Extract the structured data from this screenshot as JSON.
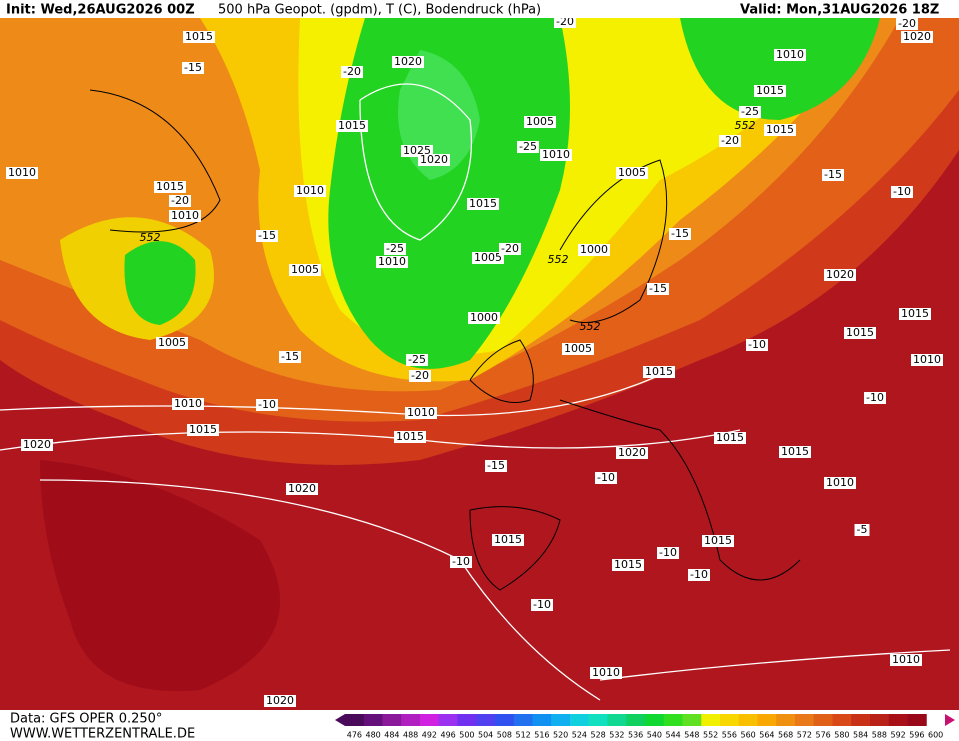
{
  "header": {
    "init": "Init: Wed,26AUG2026 00Z",
    "title": "500 hPa Geopot. (gpdm), T (C), Bodendruck (hPa)",
    "valid": "Valid: Mon,31AUG2026 18Z"
  },
  "footer": {
    "source": "Data: GFS OPER 0.250°",
    "site": "WWW.WETTERZENTRALE.DE"
  },
  "map": {
    "pressure_labels": [
      1015,
      1010,
      1015,
      1010,
      1005,
      1005,
      1010,
      1015,
      1020,
      1025,
      1020,
      1010,
      1015,
      1005,
      1000,
      1005,
      1010,
      1005,
      1000,
      1005,
      1015,
      1010,
      1015,
      1015,
      1020,
      1020,
      1015,
      1015,
      1010,
      1015,
      1015,
      1010,
      1020,
      1015,
      1015,
      1015,
      1010,
      1010,
      1010,
      1015,
      1020,
      1010,
      1015,
      1020,
      1020
    ],
    "temperature_labels": [
      -15,
      -20,
      -20,
      -15,
      -25,
      -20,
      -25,
      -25,
      -20,
      -15,
      -10,
      -15,
      -15,
      -10,
      -15,
      -25,
      -20,
      -10,
      -15,
      -10,
      -10,
      -10,
      -10,
      -10,
      -10,
      -5,
      -20,
      -20
    ],
    "geopotential_labels": [
      552,
      552,
      552,
      552
    ]
  },
  "colorbar": {
    "labels": [
      476,
      480,
      484,
      488,
      492,
      496,
      500,
      504,
      508,
      512,
      516,
      520,
      524,
      528,
      532,
      536,
      540,
      544,
      548,
      552,
      556,
      560,
      564,
      568,
      572,
      576,
      580,
      584,
      588,
      592,
      596,
      600
    ],
    "colors": [
      "#4a0a5a",
      "#64107a",
      "#8a1a9a",
      "#b020c0",
      "#d020e0",
      "#9a30f0",
      "#7030f0",
      "#5040f0",
      "#3050f0",
      "#2070f0",
      "#1090f0",
      "#10b0f0",
      "#10d0e0",
      "#10e0c0",
      "#10d890",
      "#10d060",
      "#10d830",
      "#30e020",
      "#60e020",
      "#f0f000",
      "#f8d800",
      "#f8c000",
      "#f8a800",
      "#f09010",
      "#e87818",
      "#e06018",
      "#d84818",
      "#c83018",
      "#b82018",
      "#a81018",
      "#980818",
      "#c81070"
    ]
  }
}
